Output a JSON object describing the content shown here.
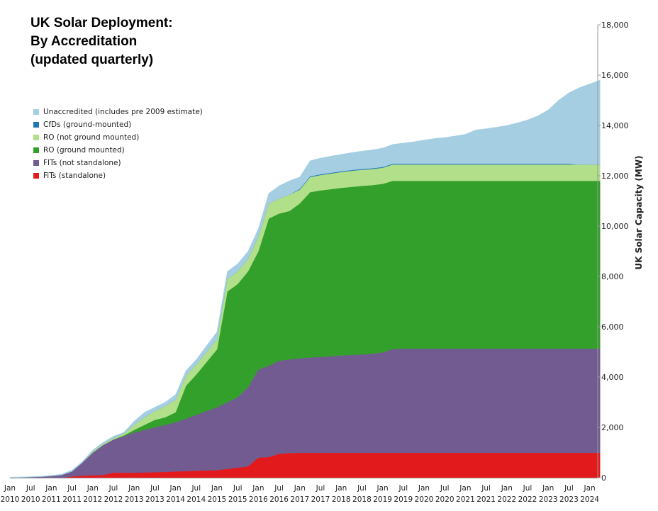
{
  "chart_data": {
    "type": "area",
    "stacked": true,
    "title": [
      "UK Solar Deployment:",
      "By Accreditation",
      "(updated quarterly)"
    ],
    "xlabel": "",
    "ylabel": "UK Solar Capacity (MW)",
    "ylim": [
      0,
      18000
    ],
    "yticks": [
      0,
      2000,
      4000,
      6000,
      8000,
      10000,
      12000,
      14000,
      16000,
      18000
    ],
    "ytick_labels": [
      "0",
      "2,000",
      "4,000",
      "6,000",
      "8,000",
      "10,000",
      "12,000",
      "14,000",
      "16,000",
      "18,000"
    ],
    "yaxis_side": "right",
    "grid": false,
    "legend_placement": "top-left",
    "xtick_labels": [
      [
        "Jan",
        "2010"
      ],
      [
        "Jul",
        "2010"
      ],
      [
        "Jan",
        "2011"
      ],
      [
        "Jul",
        "2011"
      ],
      [
        "Jan",
        "2012"
      ],
      [
        "Jul",
        "2012"
      ],
      [
        "Jan",
        "2013"
      ],
      [
        "Jul",
        "2013"
      ],
      [
        "Jan",
        "2014"
      ],
      [
        "Jul",
        "2014"
      ],
      [
        "Jan",
        "2015"
      ],
      [
        "Jul",
        "2015"
      ],
      [
        "Jan",
        "2016"
      ],
      [
        "Jul",
        "2016"
      ],
      [
        "Jan",
        "2017"
      ],
      [
        "Jul",
        "2017"
      ],
      [
        "Jan",
        "2018"
      ],
      [
        "Jul",
        "2018"
      ],
      [
        "Jan",
        "2019"
      ],
      [
        "Jul",
        "2019"
      ],
      [
        "Jan",
        "2020"
      ],
      [
        "Jul",
        "2020"
      ],
      [
        "Jan",
        "2021"
      ],
      [
        "Jul",
        "2021"
      ],
      [
        "Jan",
        "2022"
      ],
      [
        "Jul",
        "2022"
      ],
      [
        "Jan",
        "2023"
      ],
      [
        "Jul",
        "2023"
      ],
      [
        "Jan",
        "2024"
      ]
    ],
    "x_start": "2010-01",
    "x_step": "quarter",
    "series": [
      {
        "name": "FiTs (standalone)",
        "color": "#e31a1c",
        "values": [
          0,
          0,
          0,
          0,
          0,
          0,
          50,
          80,
          100,
          110,
          200,
          200,
          200,
          210,
          220,
          230,
          250,
          260,
          280,
          290,
          300,
          350,
          400,
          450,
          800,
          820,
          950,
          980,
          990,
          990,
          990,
          990,
          990,
          990,
          990,
          990,
          990,
          990,
          990,
          990,
          990,
          990,
          990,
          990,
          990,
          990,
          990,
          990,
          990,
          990,
          990,
          990,
          990,
          990,
          990,
          990,
          990,
          990
        ]
      },
      {
        "name": "FITs (not standalone)",
        "color": "#725b90",
        "values": [
          0,
          10,
          25,
          40,
          70,
          110,
          200,
          520,
          900,
          1190,
          1320,
          1450,
          1600,
          1690,
          1780,
          1870,
          1950,
          2090,
          2220,
          2360,
          2500,
          2650,
          2800,
          3150,
          3500,
          3630,
          3700,
          3720,
          3760,
          3790,
          3810,
          3840,
          3870,
          3890,
          3910,
          3940,
          3990,
          4130,
          4140,
          4140,
          4140,
          4140,
          4140,
          4140,
          4140,
          4140,
          4140,
          4140,
          4140,
          4140,
          4140,
          4140,
          4140,
          4140,
          4140,
          4140,
          4140,
          4140
        ]
      },
      {
        "name": "RO (ground mounted)",
        "color": "#33a02c",
        "values": [
          0,
          0,
          0,
          0,
          0,
          0,
          0,
          0,
          0,
          0,
          0,
          30,
          100,
          200,
          300,
          300,
          400,
          1300,
          1600,
          1950,
          2300,
          4400,
          4500,
          4600,
          4700,
          5850,
          5850,
          5900,
          6150,
          6570,
          6620,
          6640,
          6660,
          6680,
          6700,
          6700,
          6700,
          6680,
          6670,
          6670,
          6670,
          6670,
          6670,
          6670,
          6670,
          6670,
          6670,
          6670,
          6670,
          6670,
          6670,
          6670,
          6670,
          6670,
          6670,
          6670,
          6670,
          6670
        ]
      },
      {
        "name": "RO (not ground mounted)",
        "color": "#b2df8a",
        "values": [
          0,
          0,
          0,
          0,
          0,
          0,
          0,
          0,
          50,
          50,
          60,
          70,
          200,
          300,
          350,
          450,
          500,
          400,
          400,
          400,
          400,
          500,
          500,
          500,
          600,
          600,
          600,
          650,
          550,
          600,
          610,
          620,
          630,
          640,
          640,
          640,
          640,
          650,
          650,
          650,
          650,
          650,
          650,
          650,
          650,
          650,
          650,
          650,
          650,
          650,
          650,
          650,
          650,
          650,
          650,
          650,
          650,
          650
        ]
      },
      {
        "name": "CfDs (ground-mounted)",
        "color": "#1f78b4",
        "values": [
          0,
          0,
          0,
          0,
          0,
          0,
          0,
          0,
          0,
          0,
          0,
          0,
          0,
          0,
          0,
          0,
          0,
          0,
          0,
          0,
          0,
          0,
          0,
          0,
          0,
          0,
          0,
          0,
          30,
          30,
          30,
          30,
          30,
          30,
          30,
          30,
          30,
          30,
          30,
          30,
          30,
          30,
          30,
          30,
          30,
          30,
          30,
          30,
          30,
          30,
          30,
          30,
          30,
          30,
          30,
          0,
          0,
          0
        ]
      },
      {
        "name": "Unaccredited (includes pre 2009 estimate)",
        "color": "#a6cee3",
        "values": [
          20,
          20,
          15,
          20,
          20,
          30,
          50,
          50,
          50,
          50,
          70,
          50,
          150,
          200,
          150,
          150,
          200,
          200,
          200,
          250,
          300,
          300,
          300,
          300,
          300,
          400,
          500,
          550,
          470,
          620,
          640,
          660,
          670,
          690,
          710,
          730,
          750,
          770,
          820,
          870,
          940,
          1000,
          1040,
          1100,
          1170,
          1340,
          1390,
          1450,
          1520,
          1620,
          1740,
          1900,
          2140,
          2520,
          2820,
          3050,
          3200,
          3350
        ]
      }
    ],
    "legend_order": [
      "Unaccredited (includes pre 2009 estimate)",
      "CfDs (ground-mounted)",
      "RO (not ground mounted)",
      "RO (ground mounted)",
      "FITs (not standalone)",
      "FiTs (standalone)"
    ]
  }
}
